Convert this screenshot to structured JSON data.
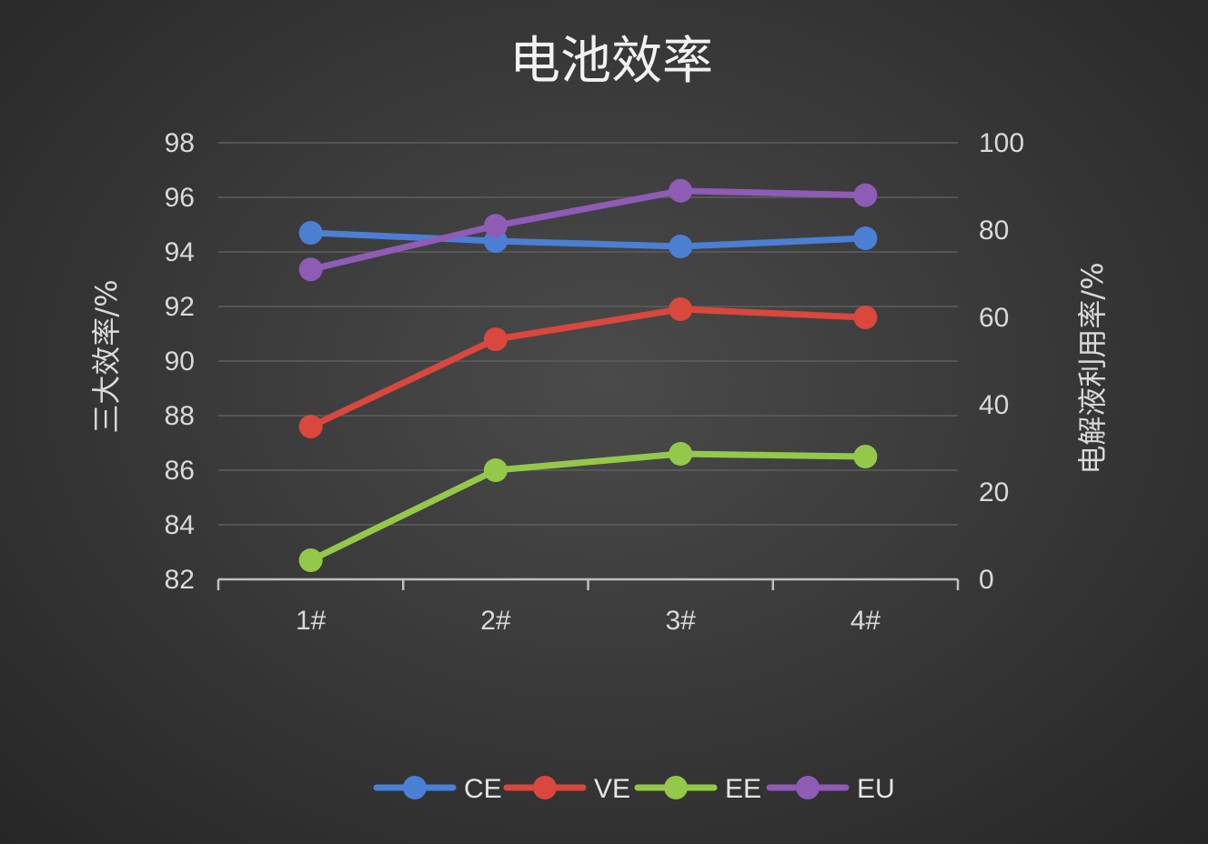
{
  "chart_data": {
    "type": "line",
    "title": "电池效率",
    "xlabel": "",
    "ylabel": "三大效率/%",
    "ylabel_right": "电解液利用率/%",
    "categories": [
      "1#",
      "2#",
      "3#",
      "4#"
    ],
    "ylim": [
      82,
      98
    ],
    "yticks": [
      82,
      84,
      86,
      88,
      90,
      92,
      94,
      96,
      98
    ],
    "ylim_right": [
      0,
      100
    ],
    "yticks_right": [
      0,
      20,
      40,
      60,
      80,
      100
    ],
    "grid": true,
    "legend": "bottom",
    "series": [
      {
        "name": "CE",
        "axis": "left",
        "color": "#4a7fd4",
        "values": [
          94.7,
          94.4,
          94.2,
          94.5
        ]
      },
      {
        "name": "VE",
        "axis": "left",
        "color": "#d9473d",
        "values": [
          87.6,
          90.8,
          91.9,
          91.6
        ]
      },
      {
        "name": "EE",
        "axis": "left",
        "color": "#93c84a",
        "values": [
          82.7,
          86.0,
          86.6,
          86.5
        ]
      },
      {
        "name": "EU",
        "axis": "right",
        "color": "#8e5bb5",
        "values": [
          71,
          81,
          89,
          88
        ]
      }
    ]
  }
}
